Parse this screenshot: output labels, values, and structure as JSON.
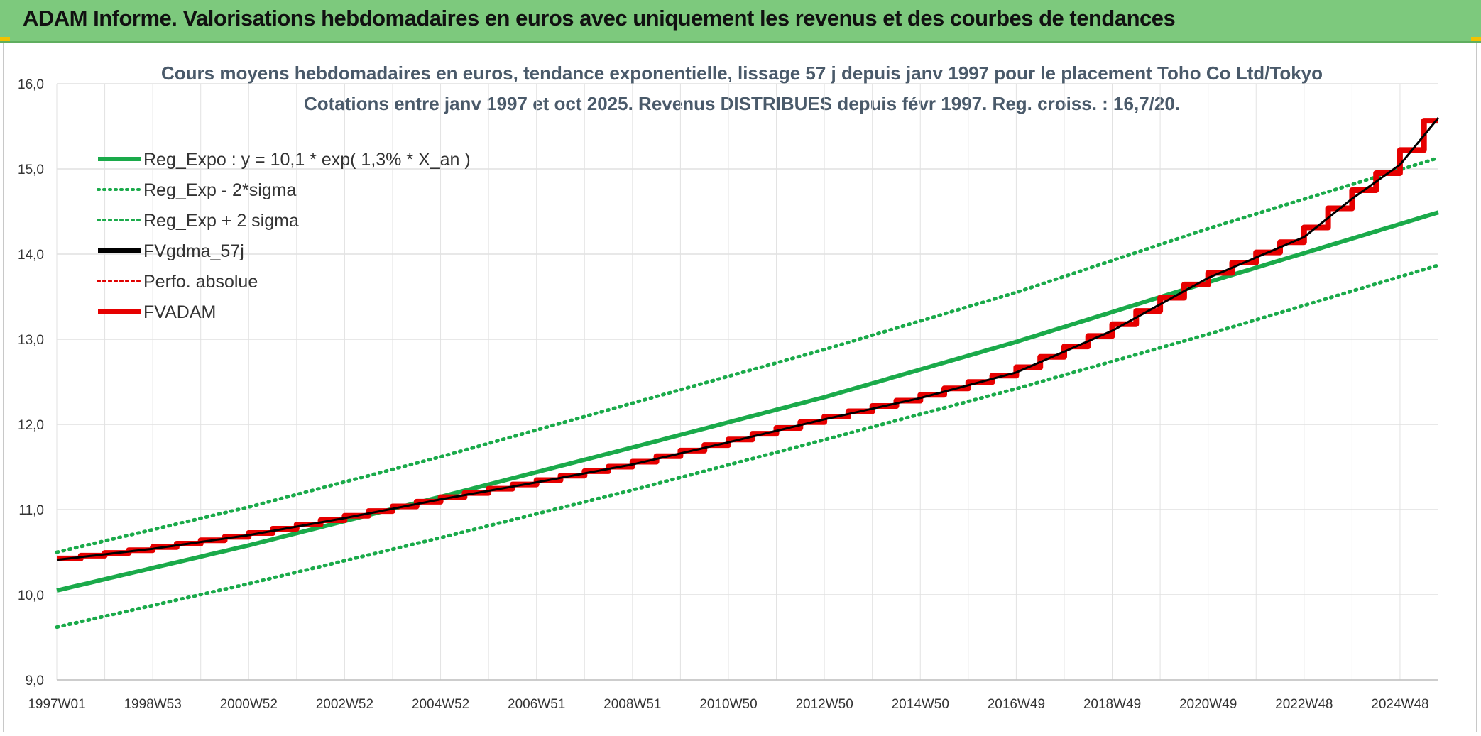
{
  "header": {
    "title": "ADAM Informe. Valorisations hebdomadaires en euros avec uniquement les revenus et des courbes de tendances"
  },
  "chart_data": {
    "type": "line",
    "title": "Cours moyens hebdomadaires en euros, tendance exponentielle, lissage 57 j depuis janv 1997 pour le placement Toho Co Ltd/Tokyo",
    "subtitle": "Cotations entre janv 1997 et oct 2025. Revenus DISTRIBUES depuis févr 1997. Reg. croiss. : 16,7/20.",
    "xlabel": "",
    "ylabel": "",
    "ylim": [
      9.0,
      16.0
    ],
    "y_ticks": [
      "9,0",
      "10,0",
      "11,0",
      "12,0",
      "13,0",
      "14,0",
      "15,0",
      "16,0"
    ],
    "x_tick_labels": [
      "1997W01",
      "1998W53",
      "2000W52",
      "2002W52",
      "2004W52",
      "2006W51",
      "2008W51",
      "2010W50",
      "2012W50",
      "2014W50",
      "2016W49",
      "2018W49",
      "2020W49",
      "2022W48",
      "2024W48"
    ],
    "x_tick_years": [
      1997.0,
      1999.0,
      2001.0,
      2003.0,
      2005.0,
      2007.0,
      2009.0,
      2011.0,
      2013.0,
      2015.0,
      2017.0,
      2019.0,
      2021.0,
      2023.0,
      2025.0
    ],
    "x_range": [
      1997.0,
      2025.8
    ],
    "grid": true,
    "legend_position": "top-left",
    "series": [
      {
        "name": "Reg_Expo : y = 10,1 * exp( 1,3% *  X_an )",
        "color": "#1aaa4a",
        "style": "solid",
        "x": [
          1997.0,
          2001.0,
          2005.0,
          2009.0,
          2013.0,
          2017.0,
          2021.0,
          2025.8
        ],
        "values": [
          10.05,
          10.58,
          11.15,
          11.73,
          12.32,
          12.97,
          13.67,
          14.49
        ]
      },
      {
        "name": "Reg_Exp - 2*sigma",
        "color": "#1aaa4a",
        "style": "dotted",
        "x": [
          1997.0,
          2001.0,
          2005.0,
          2009.0,
          2013.0,
          2017.0,
          2021.0,
          2025.8
        ],
        "values": [
          9.62,
          10.13,
          10.67,
          11.23,
          11.82,
          12.42,
          13.06,
          13.87
        ]
      },
      {
        "name": "Reg_Exp + 2 sigma",
        "color": "#1aaa4a",
        "style": "dotted",
        "x": [
          1997.0,
          2001.0,
          2005.0,
          2009.0,
          2013.0,
          2017.0,
          2021.0,
          2025.8
        ],
        "values": [
          10.5,
          11.03,
          11.62,
          12.25,
          12.88,
          13.55,
          14.3,
          15.13
        ]
      },
      {
        "name": "FVgdma_57j",
        "color": "#000000",
        "style": "solid",
        "x": [
          1997.0,
          1999.0,
          2001.0,
          2003.0,
          2004.0,
          2005.0,
          2007.0,
          2009.0,
          2011.0,
          2013.0,
          2015.0,
          2017.0,
          2019.0,
          2021.0,
          2023.0,
          2024.0,
          2025.0,
          2025.8
        ],
        "values": [
          10.41,
          10.54,
          10.7,
          10.9,
          11.01,
          11.12,
          11.32,
          11.53,
          11.79,
          12.06,
          12.31,
          12.61,
          13.1,
          13.72,
          14.2,
          14.65,
          15.05,
          15.6
        ]
      },
      {
        "name": "Perfo. absolue",
        "color": "#e00000",
        "style": "dotted",
        "x": [],
        "values": []
      },
      {
        "name": "FVADAM",
        "color": "#e60000",
        "style": "step",
        "x": [
          1997.0,
          1999.0,
          2001.0,
          2003.0,
          2004.0,
          2005.0,
          2007.0,
          2009.0,
          2011.0,
          2013.0,
          2015.0,
          2017.0,
          2019.0,
          2021.0,
          2023.0,
          2024.0,
          2025.0,
          2025.8
        ],
        "values": [
          10.41,
          10.54,
          10.7,
          10.9,
          11.01,
          11.12,
          11.32,
          11.53,
          11.79,
          12.06,
          12.31,
          12.61,
          13.1,
          13.72,
          14.2,
          14.65,
          15.05,
          15.6
        ]
      }
    ]
  }
}
